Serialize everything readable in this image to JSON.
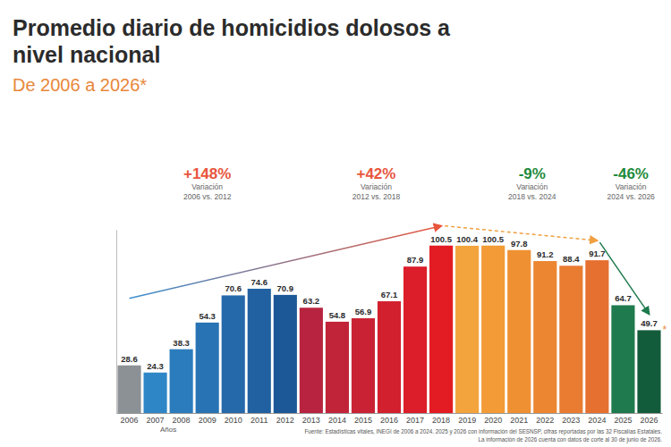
{
  "chart_data": {
    "type": "bar",
    "title": "Promedio diario de homicidios dolosos a nivel nacional",
    "subtitle": "De 2006 a 2026*",
    "x_label": "Años",
    "categories": [
      "2006",
      "2007",
      "2008",
      "2009",
      "2010",
      "2011",
      "2012",
      "2013",
      "2014",
      "2015",
      "2016",
      "2017",
      "2018",
      "2019",
      "2020",
      "2021",
      "2022",
      "2023",
      "2024",
      "2025",
      "2026"
    ],
    "values": [
      28.6,
      24.3,
      38.3,
      54.3,
      70.6,
      74.6,
      70.9,
      63.2,
      54.8,
      56.9,
      67.1,
      87.9,
      100.5,
      100.4,
      100.5,
      97.8,
      91.2,
      88.4,
      91.7,
      64.7,
      49.7
    ],
    "colors": [
      "#8c9196",
      "#2f86c6",
      "#2b7cbd",
      "#2873b4",
      "#2569aa",
      "#2160a1",
      "#1c5797",
      "#b8243f",
      "#c12339",
      "#c92234",
      "#d2202f",
      "#db1e29",
      "#e31b23",
      "#f3a43c",
      "#f29b37",
      "#ef9033",
      "#ec8631",
      "#e97c30",
      "#e6702f",
      "#1f7a4d",
      "#135c3b"
    ],
    "ylim": [
      0,
      110
    ],
    "tick_labels": "x",
    "data_labels": true,
    "note_mark": "*",
    "annotations": [
      {
        "text": "+148%",
        "label": "Variación",
        "period": "2006 vs. 2012",
        "color": "#e8553c"
      },
      {
        "text": "+42%",
        "label": "Variación",
        "period": "2012 vs. 2018",
        "color": "#e8553c"
      },
      {
        "text": "-9%",
        "label": "Variación",
        "period": "2018 vs. 2024",
        "color": "#1f8a3c"
      },
      {
        "text": "-46%",
        "label": "Variación",
        "period": "2024 vs. 2026",
        "color": "#1f8a3c"
      }
    ],
    "source": "Fuente: Estadísticas vitales, INEGI de 2006 a 2024. 2025 y 2026 con información del SESNSP, cifras reportadas por las 32 Fiscalías Estatales.",
    "footnote": "La información de 2026 cuenta con datos de corte al 30 de junio de 2026."
  }
}
